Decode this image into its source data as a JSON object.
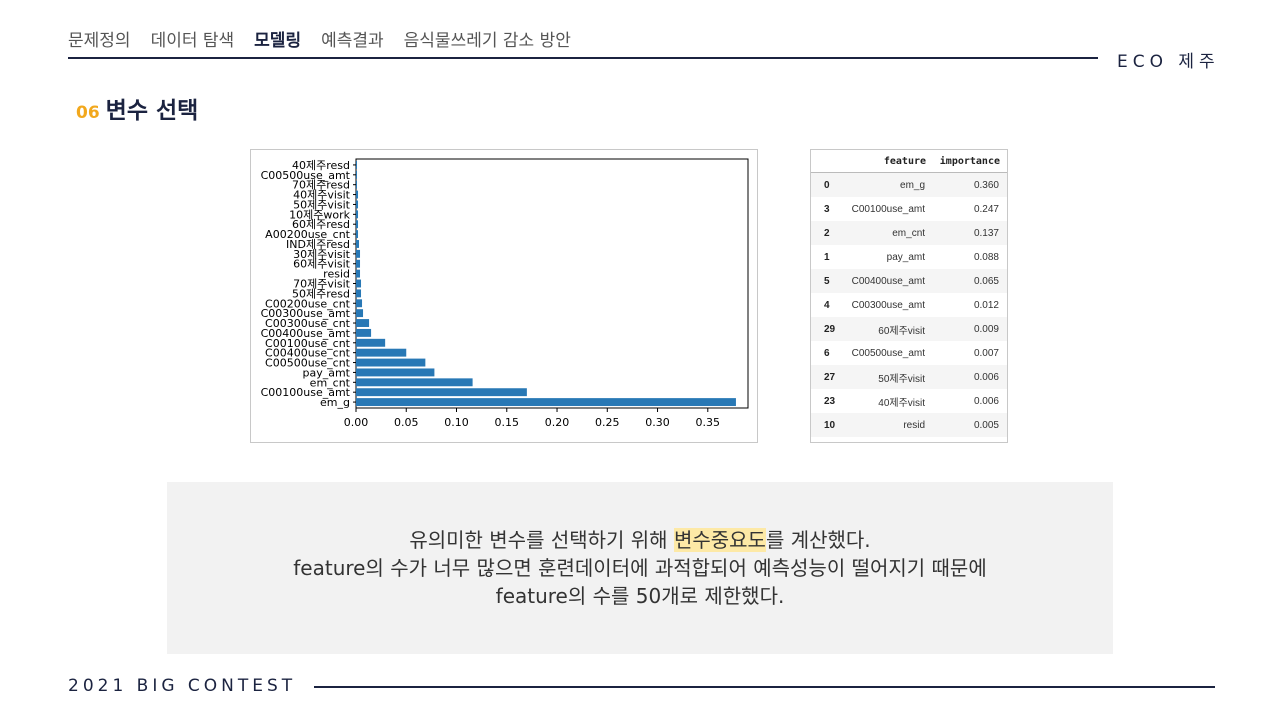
{
  "nav": {
    "items": [
      "문제정의",
      "데이터 탐색",
      "모델링",
      "예측결과",
      "음식물쓰레기 감소 방안"
    ],
    "active_index": 2
  },
  "brand": "ECO 제주",
  "section": {
    "number": "06",
    "title": "변수 선택"
  },
  "chart_data": {
    "type": "bar",
    "orientation": "horizontal",
    "categories": [
      "em_g",
      "C00100use_amt",
      "em_cnt",
      "pay_amt",
      "C00500use_cnt",
      "C00400use_cnt",
      "C00100use_cnt",
      "C00400use_amt",
      "C00300use_cnt",
      "C00300use_amt",
      "C00200use_cnt",
      "50제주resd",
      "70제주visit",
      "resid",
      "60제주visit",
      "30제주visit",
      "IND제주resd",
      "A00200use_cnt",
      "60제주resd",
      "10제주work",
      "50제주visit",
      "40제주visit",
      "70제주resd",
      "C00500use_amt",
      "40제주resd"
    ],
    "values": [
      0.378,
      0.17,
      0.116,
      0.078,
      0.069,
      0.05,
      0.029,
      0.015,
      0.013,
      0.007,
      0.006,
      0.005,
      0.005,
      0.004,
      0.004,
      0.004,
      0.003,
      0.002,
      0.002,
      0.002,
      0.002,
      0.002,
      0.001,
      0.001,
      0.001
    ],
    "xlim": [
      0,
      0.39
    ],
    "xticks": [
      "0.00",
      "0.05",
      "0.10",
      "0.15",
      "0.20",
      "0.25",
      "0.30",
      "0.35"
    ],
    "title": "",
    "xlabel": "",
    "ylabel": "",
    "bar_color": "#2878b5"
  },
  "table": {
    "headers": [
      "",
      "feature",
      "importance"
    ],
    "rows": [
      [
        "0",
        "em_g",
        "0.360"
      ],
      [
        "3",
        "C00100use_amt",
        "0.247"
      ],
      [
        "2",
        "em_cnt",
        "0.137"
      ],
      [
        "1",
        "pay_amt",
        "0.088"
      ],
      [
        "5",
        "C00400use_amt",
        "0.065"
      ],
      [
        "4",
        "C00300use_amt",
        "0.012"
      ],
      [
        "29",
        "60제주visit",
        "0.009"
      ],
      [
        "6",
        "C00500use_amt",
        "0.007"
      ],
      [
        "27",
        "50제주visit",
        "0.006"
      ],
      [
        "23",
        "40제주visit",
        "0.006"
      ],
      [
        "10",
        "resid",
        "0.005"
      ]
    ]
  },
  "note": {
    "line1_before": "유의미한 변수를 선택하기 위해 ",
    "line1_highlight": "변수중요도",
    "line1_after": "를 계산했다.",
    "line2": "feature의 수가 너무 많으면 훈련데이터에 과적합되어 예측성능이 떨어지기 때문에",
    "line3": "feature의 수를 50개로 제한했다."
  },
  "footer": "2021 BIG CONTEST",
  "colors": {
    "navy": "#1b2340",
    "accent": "#f2a81d",
    "highlight": "#fde9a6",
    "note_bg": "#f2f2f2"
  }
}
